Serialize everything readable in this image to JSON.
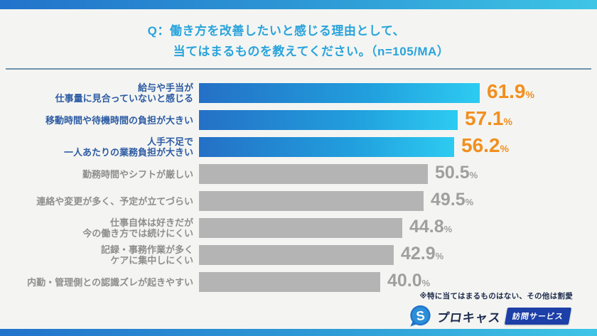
{
  "header": {
    "title_line1": "Q：働き方を改善したいと感じる理由として、",
    "title_line2": "当てはまるものを教えてください。（n=105/MA）",
    "title_color": "#29a3dc"
  },
  "chart_data": {
    "type": "bar",
    "orientation": "horizontal",
    "unit": "%",
    "xlim": [
      0,
      65
    ],
    "grid": false,
    "value_labels": "end-of-bar",
    "categories": [
      "給与や手当が仕事量に見合っていないと感じる",
      "移動時間や待機時間の負担が大きい",
      "人手不足で一人あたりの業務負担が大きい",
      "勤務時間やシフトが厳しい",
      "連絡や変更が多く、予定が立てづらい",
      "仕事自体は好きだが今の働き方では続けにくい",
      "記録・事務作業が多くケアに集中しにくい",
      "内勤・管理側との認識ズレが起きやすい"
    ],
    "values": [
      61.9,
      57.1,
      56.2,
      50.5,
      49.5,
      44.8,
      42.9,
      40.0
    ],
    "rows": [
      {
        "label_lines": [
          "給与や手当が",
          "仕事量に見合っていないと感じる"
        ],
        "value": 61.9,
        "highlighted": true
      },
      {
        "label_lines": [
          "移動時間や待機時間の負担が大きい"
        ],
        "value": 57.1,
        "highlighted": true
      },
      {
        "label_lines": [
          "人手不足で",
          "一人あたりの業務負担が大きい"
        ],
        "value": 56.2,
        "highlighted": true
      },
      {
        "label_lines": [
          "勤務時間やシフトが厳しい"
        ],
        "value": 50.5,
        "highlighted": false
      },
      {
        "label_lines": [
          "連絡や変更が多く、予定が立てづらい"
        ],
        "value": 49.5,
        "highlighted": false
      },
      {
        "label_lines": [
          "仕事自体は好きだが",
          "今の働き方では続けにくい"
        ],
        "value": 44.8,
        "highlighted": false
      },
      {
        "label_lines": [
          "記録・事務作業が多く",
          "ケアに集中しにくい"
        ],
        "value": 42.9,
        "highlighted": false
      },
      {
        "label_lines": [
          "内勤・管理側との認識ズレが起きやすい"
        ],
        "value": 40.0,
        "highlighted": false
      }
    ],
    "colors": {
      "highlight_bar_gradient": [
        "#2470c6",
        "#2dcbf1"
      ],
      "default_bar": "#b4b4b4",
      "highlight_value": "#f28f1f",
      "default_value": "#9f9f9f",
      "highlight_label": "#2d5ba3",
      "default_label": "#8e8e8e"
    }
  },
  "footnote": "※特に当てはまるものはない、その他は割愛",
  "logo": {
    "brand_text": "プロキャス",
    "badge_text": "訪問サービス",
    "icon_letter": "S",
    "badge_color": "#1c3fa8",
    "brand_color": "#1d2b4c"
  }
}
